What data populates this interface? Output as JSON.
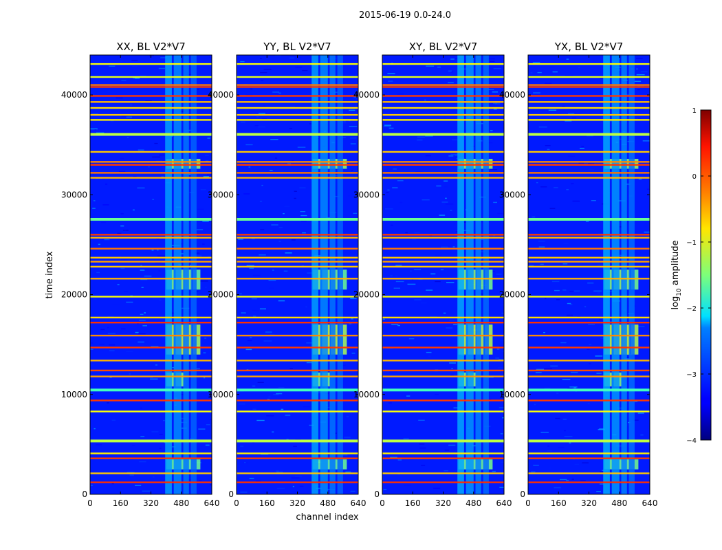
{
  "chart_data": {
    "type": "heatmap",
    "suptitle": "2015-06-19 0.0-24.0",
    "xlabel": "channel index",
    "ylabel": "time index",
    "xlim": [
      0,
      640
    ],
    "ylim": [
      0,
      44000
    ],
    "xticks": [
      "0",
      "160",
      "320",
      "480",
      "640"
    ],
    "yticks": [
      "0",
      "10000",
      "20000",
      "30000",
      "40000"
    ],
    "panels": [
      {
        "title": "XX, BL V2*V7",
        "pol": "XX"
      },
      {
        "title": "YY, BL V2*V7",
        "pol": "YY"
      },
      {
        "title": "XY, BL V2*V7",
        "pol": "XY"
      },
      {
        "title": "YX, BL V2*V7",
        "pol": "YX"
      }
    ],
    "colorbar": {
      "label": "log₁₀ amplitude",
      "label_main": "log",
      "label_sub": "10",
      "label_tail": " amplitude",
      "range": [
        -4,
        1
      ],
      "ticks": [
        "1",
        "0",
        "−1",
        "−2",
        "−3",
        "−4"
      ],
      "colormap": "jet"
    },
    "rfi_bands": [
      {
        "y": 1200,
        "level": 0.15
      },
      {
        "y": 2100,
        "level": -0.6
      },
      {
        "y": 3600,
        "level": 0.1
      },
      {
        "y": 4100,
        "level": -0.8
      },
      {
        "y": 5400,
        "level": -1.2
      },
      {
        "y": 8300,
        "level": -0.9
      },
      {
        "y": 9400,
        "level": 0.1
      },
      {
        "y": 10500,
        "level": -1.8
      },
      {
        "y": 11800,
        "level": -0.4
      },
      {
        "y": 12400,
        "level": 0.0
      },
      {
        "y": 13400,
        "level": -0.5
      },
      {
        "y": 14700,
        "level": 0.1
      },
      {
        "y": 15900,
        "level": -0.3
      },
      {
        "y": 17200,
        "level": 0.15
      },
      {
        "y": 17700,
        "level": -0.7
      },
      {
        "y": 19800,
        "level": -0.9
      },
      {
        "y": 21600,
        "level": -0.5
      },
      {
        "y": 22800,
        "level": -0.6
      },
      {
        "y": 23300,
        "level": -0.4
      },
      {
        "y": 23700,
        "level": -0.6
      },
      {
        "y": 24600,
        "level": -0.2
      },
      {
        "y": 25700,
        "level": -0.5
      },
      {
        "y": 26000,
        "level": 0.1
      },
      {
        "y": 27600,
        "level": -1.6
      },
      {
        "y": 31700,
        "level": -0.5
      },
      {
        "y": 32200,
        "level": -0.2
      },
      {
        "y": 33000,
        "level": 0.1
      },
      {
        "y": 33300,
        "level": -0.3
      },
      {
        "y": 34300,
        "level": -0.6
      },
      {
        "y": 36100,
        "level": -1.2
      },
      {
        "y": 37500,
        "level": -0.8
      },
      {
        "y": 38000,
        "level": -0.6
      },
      {
        "y": 38700,
        "level": -0.7
      },
      {
        "y": 39300,
        "level": -0.5
      },
      {
        "y": 39900,
        "level": 0.1
      },
      {
        "y": 40800,
        "level": 0.1
      },
      {
        "y": 41000,
        "level": -0.2
      },
      {
        "y": 41800,
        "level": -1.0
      },
      {
        "y": 43100,
        "level": -0.9
      }
    ],
    "bright_blocks": [
      {
        "x": [
          400,
          440
        ],
        "y": [
          14000,
          17000
        ],
        "level": -1.2
      },
      {
        "x": [
          450,
          490
        ],
        "y": [
          14000,
          17000
        ],
        "level": -1.1
      },
      {
        "x": [
          495,
          535
        ],
        "y": [
          14000,
          17000
        ],
        "level": -1.2
      },
      {
        "x": [
          540,
          580
        ],
        "y": [
          14000,
          17000
        ],
        "level": -1.3
      },
      {
        "x": [
          400,
          440
        ],
        "y": [
          20500,
          22500
        ],
        "level": -1.5
      },
      {
        "x": [
          450,
          490
        ],
        "y": [
          20500,
          22500
        ],
        "level": -1.4
      },
      {
        "x": [
          495,
          535
        ],
        "y": [
          20500,
          22500
        ],
        "level": -1.5
      },
      {
        "x": [
          540,
          580
        ],
        "y": [
          20500,
          22500
        ],
        "level": -1.6
      },
      {
        "x": [
          400,
          440
        ],
        "y": [
          10800,
          12200
        ],
        "level": -1.5
      },
      {
        "x": [
          450,
          490
        ],
        "y": [
          10800,
          12200
        ],
        "level": -1.5
      },
      {
        "x": [
          400,
          580
        ],
        "y": [
          32600,
          33600
        ],
        "level": -1.4
      },
      {
        "x": [
          400,
          580
        ],
        "y": [
          2500,
          3500
        ],
        "level": -1.6
      },
      {
        "x": [
          395,
          430
        ],
        "y": [
          0,
          44000
        ],
        "level": -2.6
      },
      {
        "x": [
          440,
          480
        ],
        "y": [
          0,
          44000
        ],
        "level": -2.7
      },
      {
        "x": [
          490,
          520
        ],
        "y": [
          0,
          44000
        ],
        "level": -2.8
      },
      {
        "x": [
          530,
          560
        ],
        "y": [
          0,
          44000
        ],
        "level": -2.9
      }
    ]
  }
}
